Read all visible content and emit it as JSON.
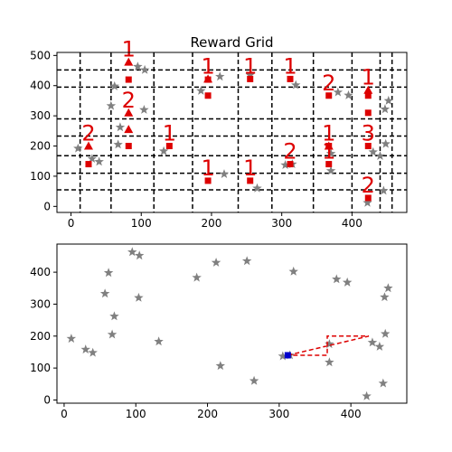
{
  "chart_data": [
    {
      "type": "scatter",
      "title": "Reward Grid",
      "xlabel": "",
      "ylabel": "",
      "xlim": [
        -20,
        478
      ],
      "ylim": [
        -20,
        510
      ],
      "x_ticks": [
        0,
        100,
        200,
        300,
        400
      ],
      "y_ticks": [
        0,
        100,
        200,
        300,
        400,
        500
      ],
      "grid": "dashed black lines",
      "grid_x": [
        13,
        57,
        118,
        173,
        238,
        286,
        345,
        400,
        440,
        457
      ],
      "grid_y": [
        55,
        110,
        168,
        233,
        290,
        395,
        452
      ],
      "star_color": "#808080",
      "reward_color": "#dd0000",
      "stars": [
        [
          10,
          192
        ],
        [
          30,
          158
        ],
        [
          40,
          148
        ],
        [
          57,
          333
        ],
        [
          62,
          398
        ],
        [
          67,
          205
        ],
        [
          70,
          262
        ],
        [
          95,
          463
        ],
        [
          104,
          320
        ],
        [
          105,
          452
        ],
        [
          132,
          183
        ],
        [
          185,
          383
        ],
        [
          212,
          430
        ],
        [
          218,
          107
        ],
        [
          255,
          435
        ],
        [
          265,
          60
        ],
        [
          305,
          137
        ],
        [
          315,
          140
        ],
        [
          320,
          402
        ],
        [
          370,
          118
        ],
        [
          370,
          175
        ],
        [
          380,
          378
        ],
        [
          395,
          368
        ],
        [
          422,
          12
        ],
        [
          430,
          180
        ],
        [
          440,
          167
        ],
        [
          445,
          52
        ],
        [
          447,
          322
        ],
        [
          448,
          207
        ],
        [
          452,
          350
        ]
      ],
      "square_rewards": [
        {
          "x": 25,
          "y": 140,
          "label": ""
        },
        {
          "x": 82,
          "y": 420,
          "label": ""
        },
        {
          "x": 82,
          "y": 200,
          "label": ""
        },
        {
          "x": 140,
          "y": 200,
          "label": "1"
        },
        {
          "x": 195,
          "y": 420,
          "label": ""
        },
        {
          "x": 195,
          "y": 367,
          "label": ""
        },
        {
          "x": 195,
          "y": 85,
          "label": "1"
        },
        {
          "x": 255,
          "y": 422,
          "label": "1"
        },
        {
          "x": 255,
          "y": 85,
          "label": "1"
        },
        {
          "x": 312,
          "y": 422,
          "label": "1"
        },
        {
          "x": 312,
          "y": 140,
          "label": "2"
        },
        {
          "x": 367,
          "y": 367,
          "label": "2"
        },
        {
          "x": 367,
          "y": 200,
          "label": ""
        },
        {
          "x": 367,
          "y": 140,
          "label": "1"
        },
        {
          "x": 423,
          "y": 367,
          "label": ""
        },
        {
          "x": 423,
          "y": 310,
          "label": ""
        },
        {
          "x": 423,
          "y": 200,
          "label": "3"
        },
        {
          "x": 423,
          "y": 28,
          "label": "2"
        }
      ],
      "triangle_rewards": [
        {
          "x": 25,
          "y": 200,
          "label": "2"
        },
        {
          "x": 82,
          "y": 478,
          "label": "1"
        },
        {
          "x": 82,
          "y": 310,
          "label": "2"
        },
        {
          "x": 82,
          "y": 255,
          "label": ""
        },
        {
          "x": 195,
          "y": 422,
          "label": "1"
        },
        {
          "x": 423,
          "y": 385,
          "label": "1"
        },
        {
          "x": 367,
          "y": 200,
          "label": "1"
        }
      ]
    },
    {
      "type": "scatter",
      "title": "",
      "xlabel": "",
      "ylabel": "",
      "xlim": [
        -10,
        478
      ],
      "ylim": [
        -10,
        488
      ],
      "x_ticks": [
        0,
        100,
        200,
        300,
        400
      ],
      "y_ticks": [
        0,
        100,
        200,
        300,
        400
      ],
      "grid": "off",
      "star_color": "#808080",
      "path_color": "#dd0000",
      "agent_color": "#0000cc",
      "stars": [
        [
          10,
          192
        ],
        [
          30,
          158
        ],
        [
          40,
          148
        ],
        [
          57,
          333
        ],
        [
          62,
          398
        ],
        [
          67,
          205
        ],
        [
          70,
          262
        ],
        [
          95,
          463
        ],
        [
          104,
          320
        ],
        [
          105,
          452
        ],
        [
          132,
          183
        ],
        [
          185,
          383
        ],
        [
          212,
          430
        ],
        [
          218,
          107
        ],
        [
          255,
          435
        ],
        [
          265,
          60
        ],
        [
          305,
          137
        ],
        [
          315,
          140
        ],
        [
          320,
          402
        ],
        [
          370,
          118
        ],
        [
          370,
          175
        ],
        [
          380,
          378
        ],
        [
          395,
          368
        ],
        [
          422,
          12
        ],
        [
          430,
          180
        ],
        [
          440,
          167
        ],
        [
          445,
          52
        ],
        [
          447,
          322
        ],
        [
          448,
          207
        ],
        [
          452,
          350
        ]
      ],
      "agent": {
        "x": 312,
        "y": 140
      },
      "path": [
        [
          312,
          140
        ],
        [
          425,
          200
        ],
        [
          367,
          200
        ],
        [
          367,
          140
        ],
        [
          312,
          140
        ]
      ]
    }
  ]
}
